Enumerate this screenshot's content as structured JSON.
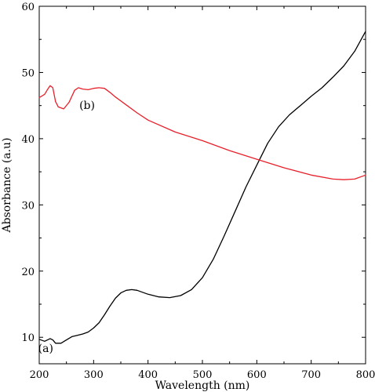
{
  "chart_data": {
    "type": "line",
    "title": "",
    "xlabel": "Wavelength (nm)",
    "ylabel": "Absorbance (a.u)",
    "xlim": [
      200,
      800
    ],
    "ylim": [
      6,
      60
    ],
    "grid": false,
    "xticks": [
      200,
      300,
      400,
      500,
      600,
      700,
      800
    ],
    "yticks": [
      10,
      20,
      30,
      40,
      50,
      60
    ],
    "series": [
      {
        "label": "(a)",
        "color": "#000000",
        "points": [
          [
            200,
            9.7
          ],
          [
            210,
            9.4
          ],
          [
            220,
            9.8
          ],
          [
            225,
            9.6
          ],
          [
            230,
            9.1
          ],
          [
            240,
            9.1
          ],
          [
            250,
            9.6
          ],
          [
            260,
            10.1
          ],
          [
            270,
            10.3
          ],
          [
            280,
            10.5
          ],
          [
            290,
            10.8
          ],
          [
            300,
            11.4
          ],
          [
            310,
            12.2
          ],
          [
            320,
            13.4
          ],
          [
            330,
            14.7
          ],
          [
            340,
            15.9
          ],
          [
            350,
            16.7
          ],
          [
            360,
            17.1
          ],
          [
            370,
            17.2
          ],
          [
            380,
            17.1
          ],
          [
            390,
            16.8
          ],
          [
            400,
            16.5
          ],
          [
            420,
            16.1
          ],
          [
            440,
            16.0
          ],
          [
            460,
            16.3
          ],
          [
            480,
            17.2
          ],
          [
            500,
            19.0
          ],
          [
            520,
            21.8
          ],
          [
            540,
            25.3
          ],
          [
            560,
            29.0
          ],
          [
            580,
            32.7
          ],
          [
            600,
            36.0
          ],
          [
            620,
            39.3
          ],
          [
            640,
            41.8
          ],
          [
            660,
            43.6
          ],
          [
            680,
            45.0
          ],
          [
            700,
            46.4
          ],
          [
            720,
            47.7
          ],
          [
            740,
            49.3
          ],
          [
            760,
            51.0
          ],
          [
            780,
            53.2
          ],
          [
            800,
            56.2
          ]
        ]
      },
      {
        "label": "(b)",
        "color": "#e8202a",
        "points": [
          [
            200,
            46.2
          ],
          [
            210,
            46.7
          ],
          [
            215,
            47.4
          ],
          [
            220,
            48.0
          ],
          [
            225,
            47.7
          ],
          [
            230,
            45.6
          ],
          [
            235,
            44.8
          ],
          [
            245,
            44.5
          ],
          [
            255,
            45.5
          ],
          [
            265,
            47.3
          ],
          [
            272,
            47.7
          ],
          [
            280,
            47.5
          ],
          [
            290,
            47.4
          ],
          [
            300,
            47.6
          ],
          [
            310,
            47.7
          ],
          [
            320,
            47.6
          ],
          [
            330,
            47.0
          ],
          [
            340,
            46.3
          ],
          [
            360,
            45.1
          ],
          [
            380,
            43.9
          ],
          [
            400,
            42.8
          ],
          [
            450,
            41.0
          ],
          [
            500,
            39.7
          ],
          [
            550,
            38.2
          ],
          [
            600,
            36.9
          ],
          [
            650,
            35.6
          ],
          [
            700,
            34.5
          ],
          [
            740,
            33.9
          ],
          [
            760,
            33.8
          ],
          [
            780,
            33.9
          ],
          [
            800,
            34.5
          ]
        ]
      }
    ],
    "annotations": [
      {
        "text": "(a)",
        "x": 212,
        "y": 7.8
      },
      {
        "text": "(b)",
        "x": 288,
        "y": 44.5
      }
    ]
  }
}
